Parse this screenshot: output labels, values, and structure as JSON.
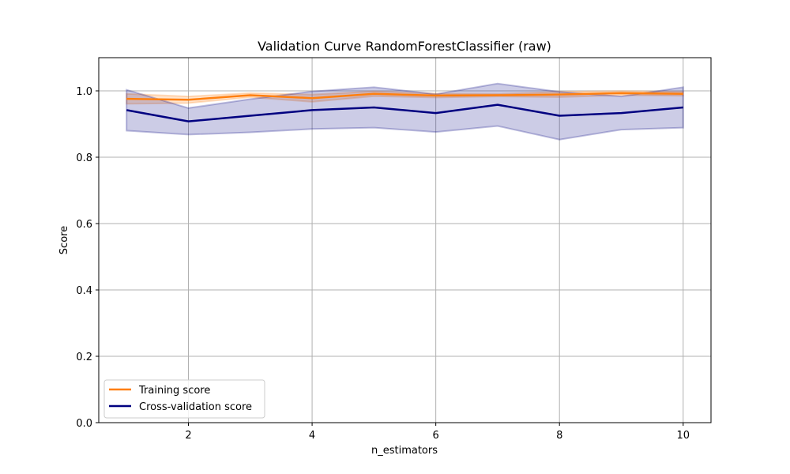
{
  "chart_data": {
    "type": "line",
    "title": "Validation Curve RandomForestClassifier (raw)",
    "xlabel": "n_estimators",
    "ylabel": "Score",
    "xlim": [
      0.55,
      10.45
    ],
    "ylim": [
      0.0,
      1.1
    ],
    "xticks": [
      2,
      4,
      6,
      8,
      10
    ],
    "yticks": [
      0.0,
      0.2,
      0.4,
      0.6,
      0.8,
      1.0
    ],
    "xtick_labels": [
      "2",
      "4",
      "6",
      "8",
      "10"
    ],
    "ytick_labels": [
      "0.0",
      "0.2",
      "0.4",
      "0.6",
      "0.8",
      "1.0"
    ],
    "grid": true,
    "legend_position": "lower-left",
    "x": [
      1,
      2,
      3,
      4,
      5,
      6,
      7,
      8,
      9,
      10
    ],
    "series": [
      {
        "name": "Training score",
        "color": "#ff7f0e",
        "values": [
          0.976,
          0.973,
          0.987,
          0.978,
          0.991,
          0.986,
          0.987,
          0.989,
          0.993,
          0.991
        ],
        "band_upper": [
          0.991,
          0.983,
          0.993,
          0.989,
          0.998,
          0.992,
          0.991,
          0.997,
          0.999,
          0.997
        ],
        "band_lower": [
          0.961,
          0.963,
          0.981,
          0.967,
          0.984,
          0.98,
          0.983,
          0.981,
          0.987,
          0.985
        ]
      },
      {
        "name": "Cross-validation score",
        "color": "#000080",
        "values": [
          0.942,
          0.908,
          0.925,
          0.942,
          0.95,
          0.933,
          0.958,
          0.925,
          0.933,
          0.95
        ],
        "band_upper": [
          1.003,
          0.948,
          0.975,
          0.998,
          1.011,
          0.99,
          1.022,
          0.997,
          0.983,
          1.011
        ],
        "band_lower": [
          0.88,
          0.868,
          0.875,
          0.885,
          0.889,
          0.876,
          0.894,
          0.853,
          0.883,
          0.889
        ]
      }
    ]
  }
}
